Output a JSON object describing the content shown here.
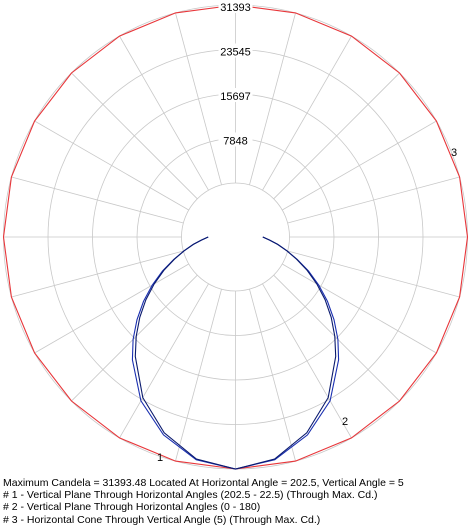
{
  "chart_data": {
    "type": "polar",
    "title": "",
    "max_value": 31393,
    "radial_ticks": [
      7848,
      15697,
      23545,
      31393
    ],
    "angular_divisions": 24,
    "series": [
      {
        "label": "1",
        "color": "#1a2fb0",
        "angles_deg": [
          0,
          10,
          20,
          30,
          40,
          45,
          50,
          55,
          60,
          65,
          70,
          75,
          80,
          85,
          90
        ],
        "values": [
          31393,
          30600,
          28500,
          25600,
          21700,
          19600,
          17400,
          15200,
          13000,
          10900,
          8900,
          7200,
          5800,
          4600,
          3700
        ]
      },
      {
        "label": "2",
        "color": "#0a1a6e",
        "angles_deg": [
          0,
          10,
          20,
          30,
          40,
          45,
          50,
          55,
          60,
          65,
          70,
          75,
          80,
          85,
          90
        ],
        "values": [
          31393,
          30500,
          28200,
          25100,
          21100,
          19000,
          16900,
          14800,
          12700,
          10700,
          8800,
          7200,
          5800,
          4600,
          3700
        ]
      },
      {
        "label": "3",
        "color": "#e8363a",
        "vertical_angle_deg": 5,
        "value": 31393
      }
    ]
  },
  "caption": {
    "max_line": "Maximum Candela = 31393.48    Located At Horizontal Angle = 202.5, Vertical Angle = 5",
    "legend_1": "# 1 - Vertical Plane Through Horizontal Angles (202.5 - 22.5) (Through Max. Cd.)",
    "legend_2": "# 2 - Vertical Plane Through Horizontal Angles (0 - 180)",
    "legend_3": "# 3 - Horizontal Cone Through Vertical Angle (5) (Through Max. Cd.)"
  },
  "colors": {
    "grid": "#c8c8c8",
    "series1": "#1a2fb0",
    "series2": "#0a1a6e",
    "series3": "#e8363a"
  }
}
